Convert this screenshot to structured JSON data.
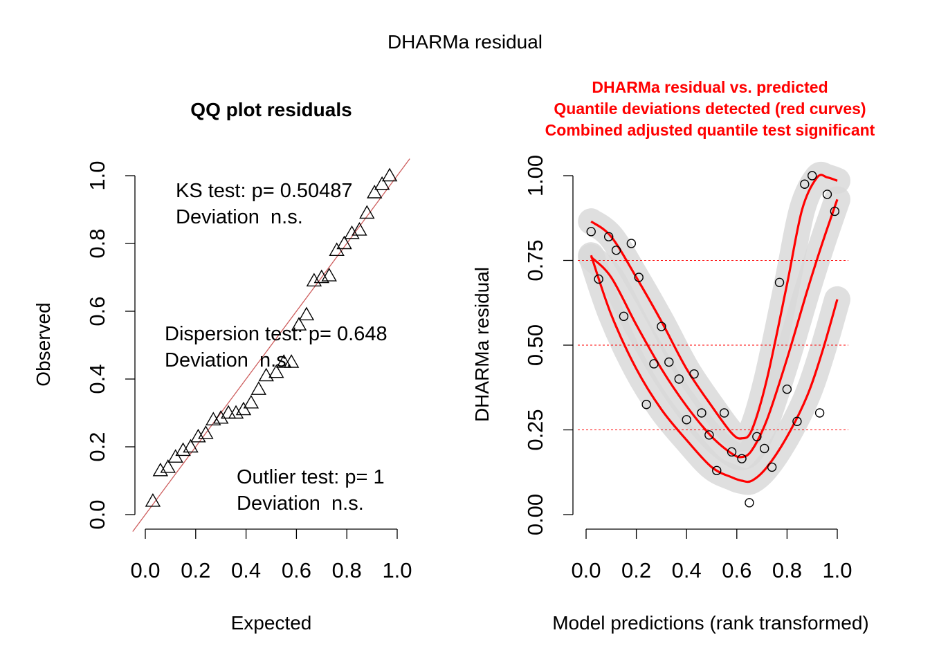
{
  "figure": {
    "title": "DHARMa residual"
  },
  "chart_data": [
    {
      "type": "scatter",
      "title": "QQ plot residuals",
      "xlabel": "Expected",
      "ylabel": "Observed",
      "xlim": [
        0,
        1
      ],
      "ylim": [
        0,
        1
      ],
      "x_ticks": [
        "0.0",
        "0.2",
        "0.4",
        "0.6",
        "0.8",
        "1.0"
      ],
      "y_ticks": [
        "0.0",
        "0.2",
        "0.4",
        "0.6",
        "0.8",
        "1.0"
      ],
      "marker": "triangle",
      "reference_line": {
        "from": [
          0,
          0
        ],
        "to": [
          1,
          1
        ],
        "color": "#cd5c5c"
      },
      "points": [
        [
          0.03,
          0.04
        ],
        [
          0.06,
          0.13
        ],
        [
          0.09,
          0.14
        ],
        [
          0.12,
          0.17
        ],
        [
          0.15,
          0.19
        ],
        [
          0.18,
          0.2
        ],
        [
          0.21,
          0.23
        ],
        [
          0.24,
          0.24
        ],
        [
          0.27,
          0.28
        ],
        [
          0.3,
          0.285
        ],
        [
          0.33,
          0.3
        ],
        [
          0.36,
          0.3
        ],
        [
          0.39,
          0.31
        ],
        [
          0.42,
          0.33
        ],
        [
          0.45,
          0.37
        ],
        [
          0.48,
          0.41
        ],
        [
          0.52,
          0.42
        ],
        [
          0.55,
          0.45
        ],
        [
          0.58,
          0.45
        ],
        [
          0.61,
          0.56
        ],
        [
          0.64,
          0.59
        ],
        [
          0.67,
          0.69
        ],
        [
          0.7,
          0.7
        ],
        [
          0.73,
          0.705
        ],
        [
          0.76,
          0.78
        ],
        [
          0.79,
          0.8
        ],
        [
          0.82,
          0.83
        ],
        [
          0.85,
          0.84
        ],
        [
          0.88,
          0.89
        ],
        [
          0.91,
          0.95
        ],
        [
          0.94,
          0.975
        ],
        [
          0.97,
          1.0
        ]
      ],
      "annotations": [
        {
          "lines": [
            "KS test: p= 0.50487",
            "Deviation  n.s."
          ]
        },
        {
          "lines": [
            "Dispersion test: p= 0.648",
            "Deviation  n.s."
          ]
        },
        {
          "lines": [
            "Outlier test: p= 1",
            "Deviation  n.s."
          ]
        }
      ]
    },
    {
      "type": "scatter",
      "title_lines": [
        "DHARMa residual vs. predicted",
        "Quantile deviations detected (red curves)",
        "Combined adjusted quantile test significant"
      ],
      "title_color": "#ff0000",
      "xlabel": "Model predictions (rank transformed)",
      "ylabel": "DHARMa residual",
      "xlim": [
        0,
        1
      ],
      "ylim": [
        0,
        1
      ],
      "x_ticks": [
        "0.0",
        "0.2",
        "0.4",
        "0.6",
        "0.8",
        "1.0"
      ],
      "y_ticks": [
        "0.00",
        "0.25",
        "0.50",
        "0.75",
        "1.00"
      ],
      "marker": "circle",
      "reference_lines_y": [
        0.25,
        0.5,
        0.75
      ],
      "points": [
        [
          0.02,
          0.835
        ],
        [
          0.05,
          0.695
        ],
        [
          0.09,
          0.82
        ],
        [
          0.12,
          0.78
        ],
        [
          0.15,
          0.585
        ],
        [
          0.18,
          0.8
        ],
        [
          0.21,
          0.7
        ],
        [
          0.24,
          0.325
        ],
        [
          0.27,
          0.445
        ],
        [
          0.3,
          0.555
        ],
        [
          0.33,
          0.45
        ],
        [
          0.37,
          0.4
        ],
        [
          0.4,
          0.28
        ],
        [
          0.43,
          0.415
        ],
        [
          0.46,
          0.3
        ],
        [
          0.49,
          0.235
        ],
        [
          0.52,
          0.13
        ],
        [
          0.55,
          0.3
        ],
        [
          0.58,
          0.185
        ],
        [
          0.62,
          0.165
        ],
        [
          0.65,
          0.035
        ],
        [
          0.68,
          0.23
        ],
        [
          0.71,
          0.195
        ],
        [
          0.74,
          0.14
        ],
        [
          0.77,
          0.685
        ],
        [
          0.8,
          0.37
        ],
        [
          0.84,
          0.275
        ],
        [
          0.87,
          0.975
        ],
        [
          0.9,
          1.0
        ],
        [
          0.93,
          0.3
        ],
        [
          0.96,
          0.945
        ],
        [
          0.99,
          0.895
        ]
      ],
      "quantile_curves": [
        {
          "quantile": 0.75,
          "color": "#ff0000",
          "points": [
            [
              0.02,
              0.865
            ],
            [
              0.1,
              0.82
            ],
            [
              0.2,
              0.7
            ],
            [
              0.3,
              0.57
            ],
            [
              0.4,
              0.43
            ],
            [
              0.5,
              0.32
            ],
            [
              0.58,
              0.24
            ],
            [
              0.62,
              0.225
            ],
            [
              0.66,
              0.25
            ],
            [
              0.72,
              0.4
            ],
            [
              0.8,
              0.68
            ],
            [
              0.86,
              0.9
            ],
            [
              0.92,
              0.995
            ],
            [
              0.96,
              0.995
            ],
            [
              1.0,
              0.985
            ]
          ]
        },
        {
          "quantile": 0.5,
          "color": "#ff0000",
          "points": [
            [
              0.02,
              0.76
            ],
            [
              0.1,
              0.7
            ],
            [
              0.2,
              0.56
            ],
            [
              0.3,
              0.43
            ],
            [
              0.4,
              0.32
            ],
            [
              0.5,
              0.23
            ],
            [
              0.58,
              0.18
            ],
            [
              0.62,
              0.17
            ],
            [
              0.66,
              0.19
            ],
            [
              0.72,
              0.28
            ],
            [
              0.8,
              0.46
            ],
            [
              0.88,
              0.66
            ],
            [
              0.94,
              0.8
            ],
            [
              1.0,
              0.93
            ]
          ]
        },
        {
          "quantile": 0.25,
          "color": "#ff0000",
          "points": [
            [
              0.02,
              0.765
            ],
            [
              0.1,
              0.59
            ],
            [
              0.2,
              0.43
            ],
            [
              0.3,
              0.31
            ],
            [
              0.4,
              0.22
            ],
            [
              0.5,
              0.14
            ],
            [
              0.58,
              0.11
            ],
            [
              0.62,
              0.1
            ],
            [
              0.66,
              0.1
            ],
            [
              0.72,
              0.14
            ],
            [
              0.8,
              0.23
            ],
            [
              0.88,
              0.35
            ],
            [
              0.94,
              0.48
            ],
            [
              1.0,
              0.635
            ]
          ]
        }
      ]
    }
  ]
}
